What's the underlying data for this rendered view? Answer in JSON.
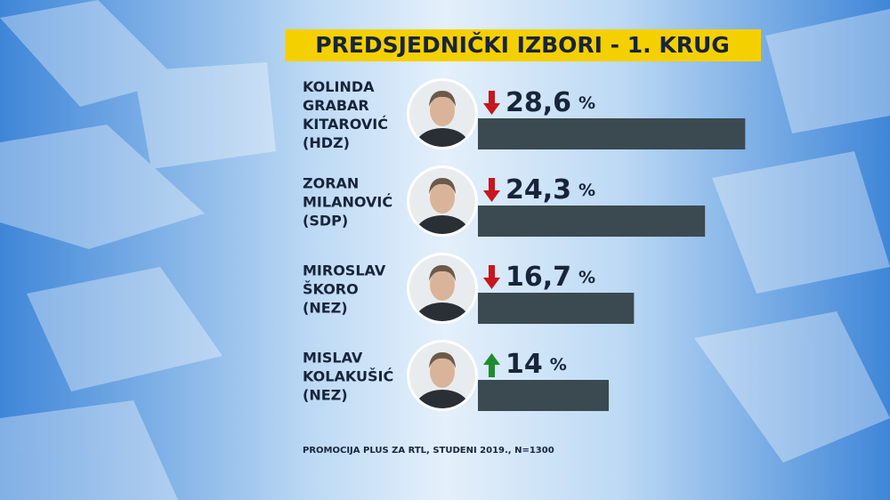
{
  "chart_data": {
    "type": "bar",
    "title": "PREDSJEDNIČKI IZBORI - 1. KRUG",
    "categories": [
      [
        "KOLINDA",
        "GRABAR",
        "KITAROVIĆ",
        "(HDZ)"
      ],
      [
        "ZORAN",
        "MILANOVIĆ",
        "(SDP)"
      ],
      [
        "MIROSLAV",
        "ŠKORO",
        "(NEZ)"
      ],
      [
        "MISLAV",
        "KOLAKUŠIĆ",
        "(NEZ)"
      ]
    ],
    "values": [
      28.6,
      24.3,
      16.7,
      14
    ],
    "value_labels": [
      "28,6",
      "24,3",
      "16,7",
      "14"
    ],
    "unit": "%",
    "trend": [
      "down",
      "down",
      "down",
      "up"
    ],
    "trend_colors": {
      "down": "#c8161d",
      "up": "#1f8c2f"
    },
    "color": "#3b4a50",
    "source": "PROMOCIJA PLUS ZA RTL, STUDENI 2019., N=1300"
  }
}
